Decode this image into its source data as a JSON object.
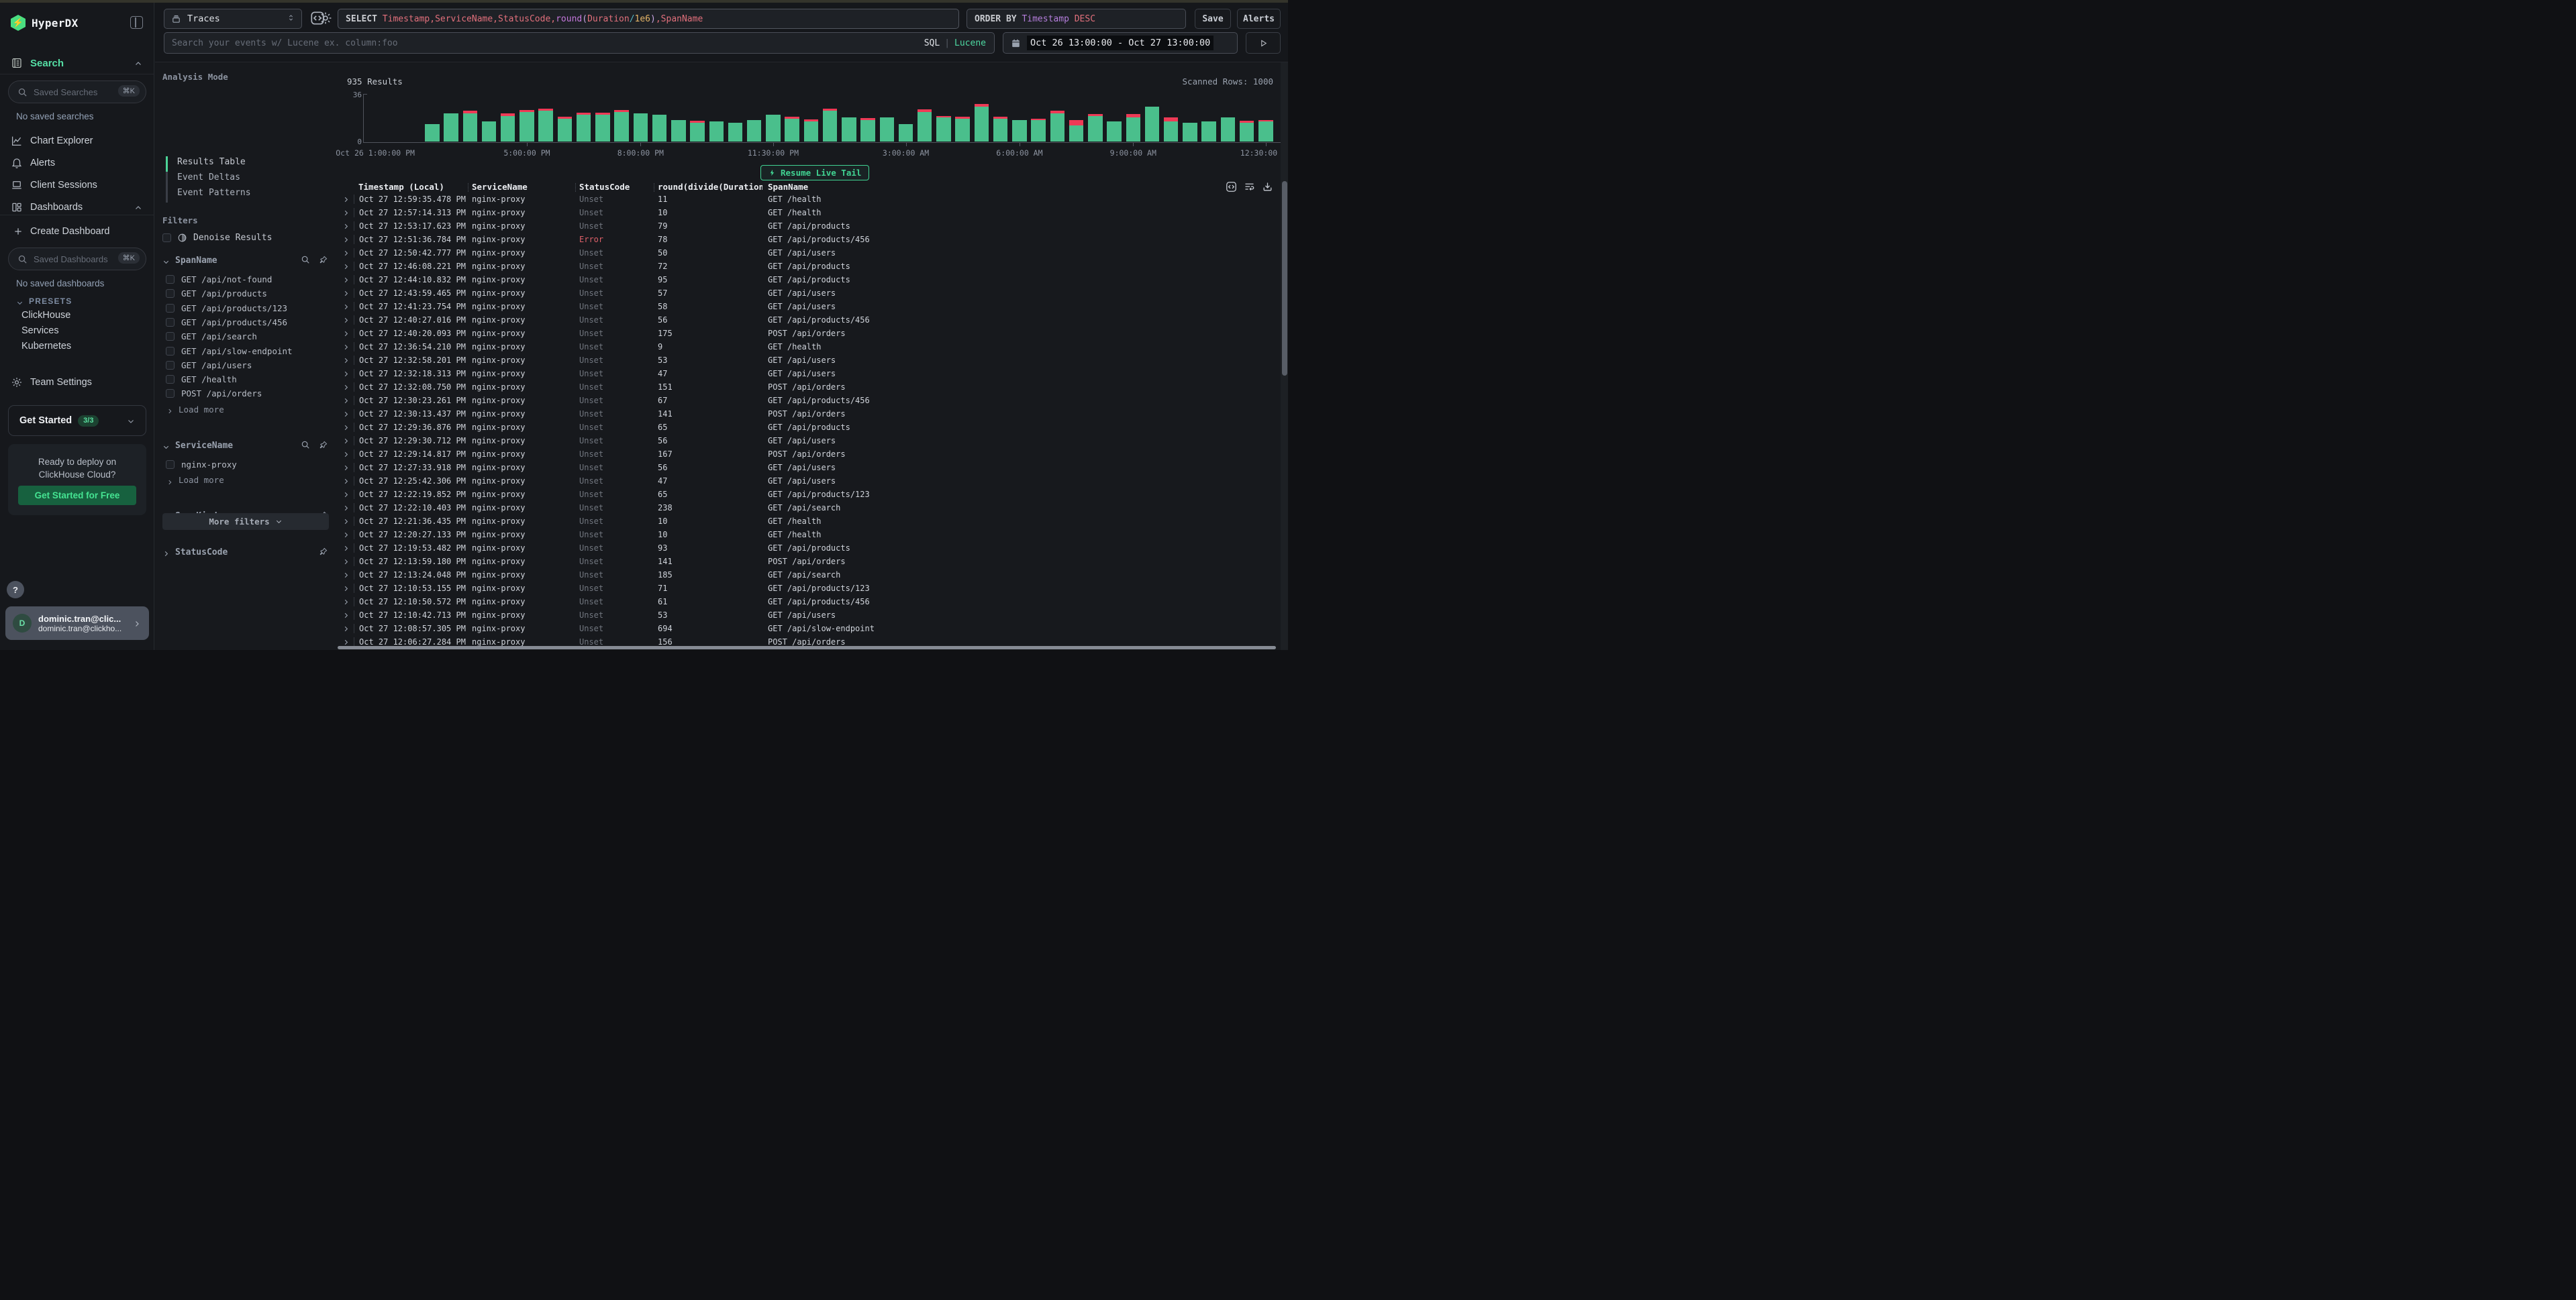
{
  "window": {
    "top_strip_color": "#34342b"
  },
  "sidebar": {
    "logo": "HyperDX",
    "search_section": {
      "label": "Search",
      "input_placeholder": "Saved Searches",
      "shortcut": "⌘K",
      "empty_note": "No saved searches"
    },
    "nav": [
      {
        "label": "Chart Explorer",
        "icon": "chart"
      },
      {
        "label": "Alerts",
        "icon": "bell"
      },
      {
        "label": "Client Sessions",
        "icon": "laptop"
      },
      {
        "label": "Dashboards",
        "icon": "dashboard",
        "chevron": "up"
      }
    ],
    "create_dashboard": "Create Dashboard",
    "dashboards_input_placeholder": "Saved Dashboards",
    "dashboards_shortcut": "⌘K",
    "dashboards_empty_note": "No saved dashboards",
    "presets_label": "PRESETS",
    "presets": [
      "ClickHouse",
      "Services",
      "Kubernetes"
    ],
    "team_settings": "Team Settings",
    "get_started": {
      "label": "Get Started",
      "badge": "3/3"
    },
    "promo": {
      "line1": "Ready to deploy on",
      "line2": "ClickHouse Cloud?",
      "button": "Get Started for Free"
    },
    "help_label": "?",
    "user": {
      "avatar_initial": "D",
      "name": "dominic.tran@clic...",
      "email": "dominic.tran@clickho..."
    }
  },
  "topbar": {
    "source_select": "Traces",
    "sql_tokens": [
      {
        "t": "SELECT ",
        "c": "kw"
      },
      {
        "t": "Timestamp",
        "c": "field"
      },
      {
        "t": ",",
        "c": "field"
      },
      {
        "t": "ServiceName",
        "c": "field"
      },
      {
        "t": ",",
        "c": "field"
      },
      {
        "t": "StatusCode",
        "c": "field"
      },
      {
        "t": ",",
        "c": "field"
      },
      {
        "t": "round",
        "c": "func"
      },
      {
        "t": "(",
        "c": "paren"
      },
      {
        "t": "Duration",
        "c": "field"
      },
      {
        "t": "/",
        "c": "op"
      },
      {
        "t": "1e6",
        "c": "num"
      },
      {
        "t": ")",
        "c": "paren"
      },
      {
        "t": ",",
        "c": "field"
      },
      {
        "t": "SpanName",
        "c": "field"
      }
    ],
    "orderby_tokens": [
      {
        "t": "ORDER BY ",
        "c": "kw"
      },
      {
        "t": "Timestamp",
        "c": "ident"
      },
      {
        "t": " DESC",
        "c": "field"
      }
    ],
    "save_label": "Save",
    "alerts_label": "Alerts",
    "search_placeholder": "Search your events w/ Lucene ex. column:foo",
    "lang_sql": "SQL",
    "lang_divider": "|",
    "lang_lucene": "Lucene",
    "date_range": "Oct 26 13:00:00 - Oct 27 13:00:00"
  },
  "filters_panel": {
    "analysis_mode_label": "Analysis Mode",
    "modes": [
      "Results Table",
      "Event Deltas",
      "Event Patterns"
    ],
    "active_mode": "Results Table",
    "filters_label": "Filters",
    "denoise_label": "Denoise Results",
    "facets": [
      {
        "name": "SpanName",
        "expanded": true,
        "has_search": true,
        "values": [
          "GET /api/not-found",
          "GET /api/products",
          "GET /api/products/123",
          "GET /api/products/456",
          "GET /api/search",
          "GET /api/slow-endpoint",
          "GET /api/users",
          "GET /health",
          "POST /api/orders"
        ],
        "load_more": "Load more"
      },
      {
        "name": "ServiceName",
        "expanded": true,
        "has_search": true,
        "values": [
          "nginx-proxy"
        ],
        "load_more": "Load more"
      },
      {
        "name": "SpanKind",
        "expanded": false,
        "has_search": false,
        "values": []
      },
      {
        "name": "StatusCode",
        "expanded": false,
        "has_search": false,
        "values": []
      }
    ],
    "more_filters_label": "More filters"
  },
  "results_header": {
    "count": "935 Results",
    "scanned": "Scanned Rows: 1000",
    "live_tail_label": "Resume Live Tail"
  },
  "chart_data": {
    "type": "bar",
    "stacked": true,
    "title": "935 Results",
    "ylim": [
      0,
      36
    ],
    "y_ticks": [
      36,
      0
    ],
    "bucket_minutes": 30,
    "total_slots": 48,
    "first_bar_slot": 3,
    "x_ticks": [
      {
        "label": "Oct 26 1:00:00 PM",
        "hour_offset": 0
      },
      {
        "label": "5:00:00 PM",
        "hour_offset": 4
      },
      {
        "label": "8:00:00 PM",
        "hour_offset": 7
      },
      {
        "label": "11:30:00 PM",
        "hour_offset": 10.5
      },
      {
        "label": "3:00:00 AM",
        "hour_offset": 14
      },
      {
        "label": "6:00:00 AM",
        "hour_offset": 17
      },
      {
        "label": "9:00:00 AM",
        "hour_offset": 20
      },
      {
        "label": "12:30:00 PM",
        "hour_offset": 23.5
      }
    ],
    "series": [
      {
        "name": "ok",
        "color": "#4abf8c",
        "values": [
          13,
          21,
          21,
          15,
          19,
          22,
          23,
          17,
          20,
          20,
          22,
          21,
          20,
          16,
          14,
          15,
          14,
          16,
          20,
          17,
          15,
          23,
          18,
          16,
          18,
          13,
          22,
          18,
          17,
          26,
          17,
          16,
          16,
          21,
          12,
          19,
          15,
          18,
          26,
          15,
          14,
          15,
          18,
          14,
          15
        ]
      },
      {
        "name": "error",
        "color": "#ee3a56",
        "values": [
          0,
          0,
          2,
          0,
          2,
          1.5,
          1.5,
          1.5,
          1.5,
          1.5,
          1.5,
          0,
          0,
          0,
          1.5,
          0,
          0,
          0,
          0,
          1.5,
          1.5,
          1.5,
          0,
          1.5,
          0,
          0,
          2,
          1,
          1.5,
          2,
          1.5,
          0,
          1,
          2,
          4,
          1.5,
          0,
          2.5,
          0,
          3,
          0,
          0,
          0,
          1.5,
          1
        ]
      }
    ]
  },
  "table": {
    "columns": [
      "Timestamp (Local)",
      "ServiceName",
      "StatusCode",
      "round(divide(Duration,",
      "SpanName"
    ],
    "rows": [
      [
        "Oct 27 12:59:35.478 PM",
        "nginx-proxy",
        "Unset",
        "11",
        "GET /health"
      ],
      [
        "Oct 27 12:57:14.313 PM",
        "nginx-proxy",
        "Unset",
        "10",
        "GET /health"
      ],
      [
        "Oct 27 12:53:17.623 PM",
        "nginx-proxy",
        "Unset",
        "79",
        "GET /api/products"
      ],
      [
        "Oct 27 12:51:36.784 PM",
        "nginx-proxy",
        "Error",
        "78",
        "GET /api/products/456"
      ],
      [
        "Oct 27 12:50:42.777 PM",
        "nginx-proxy",
        "Unset",
        "50",
        "GET /api/users"
      ],
      [
        "Oct 27 12:46:08.221 PM",
        "nginx-proxy",
        "Unset",
        "72",
        "GET /api/products"
      ],
      [
        "Oct 27 12:44:10.832 PM",
        "nginx-proxy",
        "Unset",
        "95",
        "GET /api/products"
      ],
      [
        "Oct 27 12:43:59.465 PM",
        "nginx-proxy",
        "Unset",
        "57",
        "GET /api/users"
      ],
      [
        "Oct 27 12:41:23.754 PM",
        "nginx-proxy",
        "Unset",
        "58",
        "GET /api/users"
      ],
      [
        "Oct 27 12:40:27.016 PM",
        "nginx-proxy",
        "Unset",
        "56",
        "GET /api/products/456"
      ],
      [
        "Oct 27 12:40:20.093 PM",
        "nginx-proxy",
        "Unset",
        "175",
        "POST /api/orders"
      ],
      [
        "Oct 27 12:36:54.210 PM",
        "nginx-proxy",
        "Unset",
        "9",
        "GET /health"
      ],
      [
        "Oct 27 12:32:58.201 PM",
        "nginx-proxy",
        "Unset",
        "53",
        "GET /api/users"
      ],
      [
        "Oct 27 12:32:18.313 PM",
        "nginx-proxy",
        "Unset",
        "47",
        "GET /api/users"
      ],
      [
        "Oct 27 12:32:08.750 PM",
        "nginx-proxy",
        "Unset",
        "151",
        "POST /api/orders"
      ],
      [
        "Oct 27 12:30:23.261 PM",
        "nginx-proxy",
        "Unset",
        "67",
        "GET /api/products/456"
      ],
      [
        "Oct 27 12:30:13.437 PM",
        "nginx-proxy",
        "Unset",
        "141",
        "POST /api/orders"
      ],
      [
        "Oct 27 12:29:36.876 PM",
        "nginx-proxy",
        "Unset",
        "65",
        "GET /api/products"
      ],
      [
        "Oct 27 12:29:30.712 PM",
        "nginx-proxy",
        "Unset",
        "56",
        "GET /api/users"
      ],
      [
        "Oct 27 12:29:14.817 PM",
        "nginx-proxy",
        "Unset",
        "167",
        "POST /api/orders"
      ],
      [
        "Oct 27 12:27:33.918 PM",
        "nginx-proxy",
        "Unset",
        "56",
        "GET /api/users"
      ],
      [
        "Oct 27 12:25:42.306 PM",
        "nginx-proxy",
        "Unset",
        "47",
        "GET /api/users"
      ],
      [
        "Oct 27 12:22:19.852 PM",
        "nginx-proxy",
        "Unset",
        "65",
        "GET /api/products/123"
      ],
      [
        "Oct 27 12:22:10.403 PM",
        "nginx-proxy",
        "Unset",
        "238",
        "GET /api/search"
      ],
      [
        "Oct 27 12:21:36.435 PM",
        "nginx-proxy",
        "Unset",
        "10",
        "GET /health"
      ],
      [
        "Oct 27 12:20:27.133 PM",
        "nginx-proxy",
        "Unset",
        "10",
        "GET /health"
      ],
      [
        "Oct 27 12:19:53.482 PM",
        "nginx-proxy",
        "Unset",
        "93",
        "GET /api/products"
      ],
      [
        "Oct 27 12:13:59.180 PM",
        "nginx-proxy",
        "Unset",
        "141",
        "POST /api/orders"
      ],
      [
        "Oct 27 12:13:24.048 PM",
        "nginx-proxy",
        "Unset",
        "185",
        "GET /api/search"
      ],
      [
        "Oct 27 12:10:53.155 PM",
        "nginx-proxy",
        "Unset",
        "71",
        "GET /api/products/123"
      ],
      [
        "Oct 27 12:10:50.572 PM",
        "nginx-proxy",
        "Unset",
        "61",
        "GET /api/products/456"
      ],
      [
        "Oct 27 12:10:42.713 PM",
        "nginx-proxy",
        "Unset",
        "53",
        "GET /api/users"
      ],
      [
        "Oct 27 12:08:57.305 PM",
        "nginx-proxy",
        "Unset",
        "694",
        "GET /api/slow-endpoint"
      ],
      [
        "Oct 27 12:06:27.284 PM",
        "nginx-proxy",
        "Unset",
        "156",
        "POST /api/orders"
      ]
    ]
  }
}
